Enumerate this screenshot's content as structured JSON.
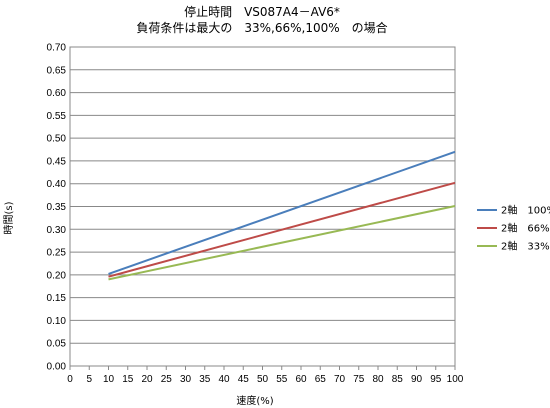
{
  "chart_data": {
    "type": "line",
    "title": "停止時間　VS087A4－AV6*",
    "subtitle": "負荷条件は最大の　33%,66%,100%　の場合",
    "xlabel": "速度(%)",
    "ylabel": "時間(s)",
    "xlim": [
      0,
      100
    ],
    "ylim": [
      0,
      0.7
    ],
    "x_ticks": [
      0,
      5,
      10,
      15,
      20,
      25,
      30,
      35,
      40,
      45,
      50,
      55,
      60,
      65,
      70,
      75,
      80,
      85,
      90,
      95,
      100
    ],
    "y_ticks": [
      "0.00",
      "0.05",
      "0.10",
      "0.15",
      "0.20",
      "0.25",
      "0.30",
      "0.35",
      "0.40",
      "0.45",
      "0.50",
      "0.55",
      "0.60",
      "0.65",
      "0.70"
    ],
    "grid": true,
    "legend_position": "right",
    "series": [
      {
        "name": "2軸　100%",
        "color": "#4A7EBB",
        "x": [
          10,
          100
        ],
        "y": [
          0.202,
          0.47
        ]
      },
      {
        "name": "2軸　66%",
        "color": "#BE4B48",
        "x": [
          10,
          100
        ],
        "y": [
          0.196,
          0.402
        ]
      },
      {
        "name": "2軸　33%",
        "color": "#98B954",
        "x": [
          10,
          100
        ],
        "y": [
          0.19,
          0.351
        ]
      }
    ]
  }
}
